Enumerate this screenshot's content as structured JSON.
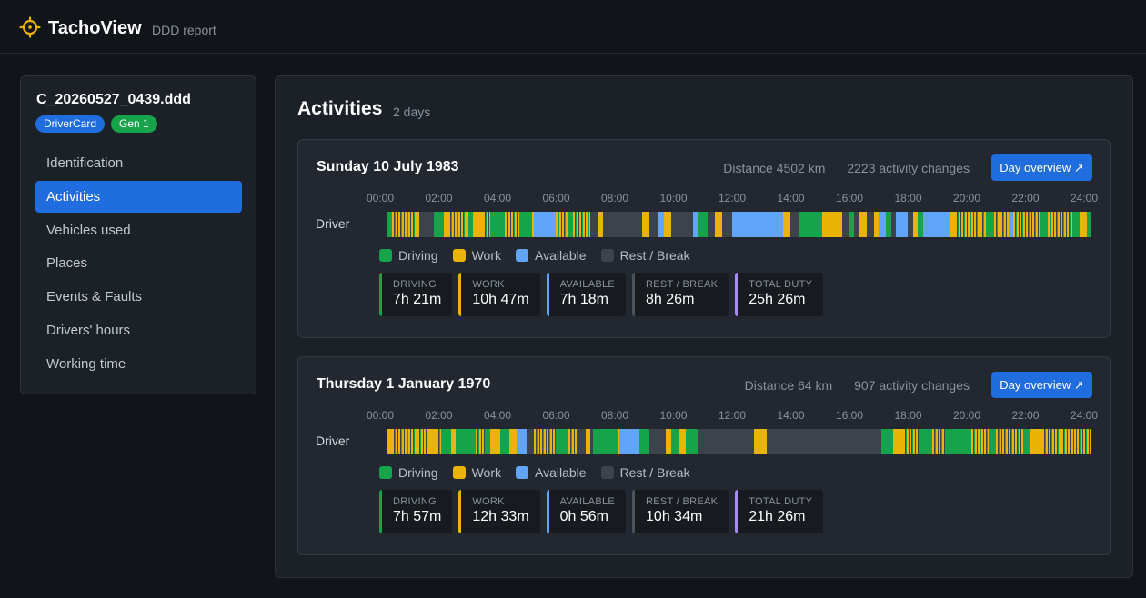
{
  "app": {
    "name": "TachoView",
    "subtitle": "DDD report"
  },
  "colors": {
    "driving": "#16a34a",
    "work": "#eab308",
    "available": "#60a5fa",
    "rest": "#3c434d",
    "duty": "#a78bfa",
    "accent": "#1f6ddf"
  },
  "file": {
    "name": "C_20260527_0439.ddd",
    "badges": [
      "DriverCard",
      "Gen 1"
    ]
  },
  "nav": [
    {
      "label": "Identification",
      "active": false
    },
    {
      "label": "Activities",
      "active": true
    },
    {
      "label": "Vehicles used",
      "active": false
    },
    {
      "label": "Places",
      "active": false
    },
    {
      "label": "Events & Faults",
      "active": false
    },
    {
      "label": "Drivers' hours",
      "active": false
    },
    {
      "label": "Working time",
      "active": false
    }
  ],
  "main": {
    "title": "Activities",
    "subtitle": "2 days"
  },
  "timeline_ticks": [
    "00:00",
    "02:00",
    "04:00",
    "06:00",
    "08:00",
    "10:00",
    "12:00",
    "14:00",
    "16:00",
    "18:00",
    "20:00",
    "22:00",
    "24:00"
  ],
  "legend": [
    {
      "label": "Driving",
      "key": "driving"
    },
    {
      "label": "Work",
      "key": "work"
    },
    {
      "label": "Available",
      "key": "available"
    },
    {
      "label": "Rest / Break",
      "key": "rest"
    }
  ],
  "days": [
    {
      "title": "Sunday 10 July 1983",
      "distance": "Distance 4502 km",
      "changes": "2223 activity changes",
      "button": "Day overview ↗",
      "driver_label": "Driver",
      "stats": [
        {
          "label": "DRIVING",
          "value": "7h 21m",
          "key": "driving"
        },
        {
          "label": "WORK",
          "value": "10h 47m",
          "key": "work"
        },
        {
          "label": "AVAILABLE",
          "value": "7h 18m",
          "key": "available"
        },
        {
          "label": "REST / BREAK",
          "value": "8h 26m",
          "key": "rest"
        },
        {
          "label": "TOTAL DUTY",
          "value": "25h 26m",
          "key": "duty"
        }
      ],
      "segments": [
        [
          "00:00",
          "00:10",
          "driving"
        ],
        [
          "00:10",
          "00:55",
          "stripe"
        ],
        [
          "00:55",
          "01:05",
          "work"
        ],
        [
          "01:05",
          "01:35",
          "rest"
        ],
        [
          "01:35",
          "01:55",
          "driving"
        ],
        [
          "01:55",
          "02:05",
          "work"
        ],
        [
          "02:05",
          "02:45",
          "stripe"
        ],
        [
          "02:45",
          "02:55",
          "driving"
        ],
        [
          "02:55",
          "03:15",
          "work"
        ],
        [
          "03:15",
          "03:30",
          "stripe"
        ],
        [
          "03:30",
          "04:00",
          "driving"
        ],
        [
          "04:00",
          "04:30",
          "stripe"
        ],
        [
          "04:30",
          "04:55",
          "driving"
        ],
        [
          "04:55",
          "05:00",
          "work"
        ],
        [
          "05:00",
          "05:45",
          "available"
        ],
        [
          "05:45",
          "06:10",
          "stripe"
        ],
        [
          "06:10",
          "06:20",
          "driving"
        ],
        [
          "06:20",
          "06:55",
          "stripe"
        ],
        [
          "06:55",
          "07:10",
          "rest"
        ],
        [
          "07:10",
          "07:20",
          "work"
        ],
        [
          "07:20",
          "07:35",
          "rest"
        ],
        [
          "07:35",
          "08:40",
          "rest"
        ],
        [
          "08:40",
          "08:55",
          "work"
        ],
        [
          "08:55",
          "09:15",
          "rest"
        ],
        [
          "09:15",
          "09:25",
          "available"
        ],
        [
          "09:25",
          "09:40",
          "work"
        ],
        [
          "09:40",
          "09:50",
          "rest"
        ],
        [
          "09:50",
          "10:25",
          "rest"
        ],
        [
          "10:25",
          "10:35",
          "available"
        ],
        [
          "10:35",
          "10:55",
          "driving"
        ],
        [
          "10:55",
          "11:10",
          "rest"
        ],
        [
          "11:10",
          "11:25",
          "work"
        ],
        [
          "11:25",
          "11:45",
          "rest"
        ],
        [
          "11:45",
          "13:30",
          "available"
        ],
        [
          "13:30",
          "13:45",
          "work"
        ],
        [
          "13:45",
          "14:00",
          "rest"
        ],
        [
          "14:00",
          "14:10",
          "driving"
        ],
        [
          "14:10",
          "14:50",
          "driving"
        ],
        [
          "14:50",
          "15:30",
          "work"
        ],
        [
          "15:30",
          "15:45",
          "rest"
        ],
        [
          "15:45",
          "15:55",
          "driving"
        ],
        [
          "15:55",
          "16:05",
          "rest"
        ],
        [
          "16:05",
          "16:20",
          "work"
        ],
        [
          "16:20",
          "16:35",
          "rest"
        ],
        [
          "16:35",
          "16:45",
          "work"
        ],
        [
          "16:45",
          "17:00",
          "available"
        ],
        [
          "17:00",
          "17:10",
          "driving"
        ],
        [
          "17:10",
          "17:20",
          "rest"
        ],
        [
          "17:20",
          "17:45",
          "available"
        ],
        [
          "17:45",
          "17:55",
          "rest"
        ],
        [
          "17:55",
          "18:05",
          "work"
        ],
        [
          "18:05",
          "18:15",
          "driving"
        ],
        [
          "18:15",
          "19:10",
          "available"
        ],
        [
          "19:10",
          "19:20",
          "work"
        ],
        [
          "19:20",
          "20:25",
          "stripe"
        ],
        [
          "20:25",
          "20:40",
          "driving"
        ],
        [
          "20:40",
          "21:10",
          "stripe"
        ],
        [
          "21:10",
          "21:20",
          "available"
        ],
        [
          "21:20",
          "22:15",
          "stripe"
        ],
        [
          "22:15",
          "22:30",
          "driving"
        ],
        [
          "22:30",
          "23:20",
          "stripe"
        ],
        [
          "23:20",
          "23:35",
          "driving"
        ],
        [
          "23:35",
          "23:50",
          "work"
        ],
        [
          "23:50",
          "24:00",
          "driving"
        ]
      ]
    },
    {
      "title": "Thursday 1 January 1970",
      "distance": "Distance 64 km",
      "changes": "907 activity changes",
      "button": "Day overview ↗",
      "driver_label": "Driver",
      "stats": [
        {
          "label": "DRIVING",
          "value": "7h 57m",
          "key": "driving"
        },
        {
          "label": "WORK",
          "value": "12h 33m",
          "key": "work"
        },
        {
          "label": "AVAILABLE",
          "value": "0h 56m",
          "key": "available"
        },
        {
          "label": "REST / BREAK",
          "value": "10h 34m",
          "key": "rest"
        },
        {
          "label": "TOTAL DUTY",
          "value": "21h 26m",
          "key": "duty"
        }
      ],
      "segments": [
        [
          "00:00",
          "00:10",
          "work"
        ],
        [
          "00:10",
          "01:25",
          "stripe"
        ],
        [
          "01:25",
          "01:40",
          "work"
        ],
        [
          "01:40",
          "01:50",
          "stripe"
        ],
        [
          "01:50",
          "02:10",
          "driving"
        ],
        [
          "02:10",
          "02:20",
          "work"
        ],
        [
          "02:20",
          "03:00",
          "driving"
        ],
        [
          "03:00",
          "03:20",
          "stripe"
        ],
        [
          "03:20",
          "03:30",
          "driving"
        ],
        [
          "03:30",
          "03:50",
          "work"
        ],
        [
          "03:50",
          "04:10",
          "driving"
        ],
        [
          "04:10",
          "04:25",
          "work"
        ],
        [
          "04:25",
          "04:45",
          "available"
        ],
        [
          "04:45",
          "05:00",
          "rest"
        ],
        [
          "05:00",
          "05:45",
          "stripe"
        ],
        [
          "05:45",
          "06:10",
          "driving"
        ],
        [
          "06:10",
          "06:30",
          "stripe"
        ],
        [
          "06:30",
          "06:45",
          "rest"
        ],
        [
          "06:45",
          "06:55",
          "work"
        ],
        [
          "06:55",
          "07:00",
          "rest"
        ],
        [
          "07:00",
          "07:50",
          "driving"
        ],
        [
          "07:50",
          "07:55",
          "work"
        ],
        [
          "07:55",
          "08:35",
          "available"
        ],
        [
          "08:35",
          "08:55",
          "driving"
        ],
        [
          "08:55",
          "09:30",
          "rest"
        ],
        [
          "09:30",
          "09:40",
          "work"
        ],
        [
          "09:40",
          "09:55",
          "driving"
        ],
        [
          "09:55",
          "10:10",
          "work"
        ],
        [
          "10:10",
          "10:35",
          "driving"
        ],
        [
          "10:35",
          "12:30",
          "rest"
        ],
        [
          "12:30",
          "12:55",
          "work"
        ],
        [
          "12:55",
          "16:50",
          "rest"
        ],
        [
          "16:50",
          "17:15",
          "driving"
        ],
        [
          "17:15",
          "17:35",
          "work"
        ],
        [
          "17:35",
          "18:10",
          "stripe"
        ],
        [
          "18:10",
          "18:35",
          "driving"
        ],
        [
          "18:35",
          "19:00",
          "stripe"
        ],
        [
          "19:00",
          "19:55",
          "driving"
        ],
        [
          "19:55",
          "20:30",
          "stripe"
        ],
        [
          "20:30",
          "20:45",
          "driving"
        ],
        [
          "20:45",
          "21:40",
          "stripe"
        ],
        [
          "21:40",
          "21:55",
          "driving"
        ],
        [
          "21:55",
          "22:20",
          "work"
        ],
        [
          "22:20",
          "23:30",
          "stripe"
        ],
        [
          "23:30",
          "24:00",
          "stripe"
        ]
      ]
    }
  ]
}
